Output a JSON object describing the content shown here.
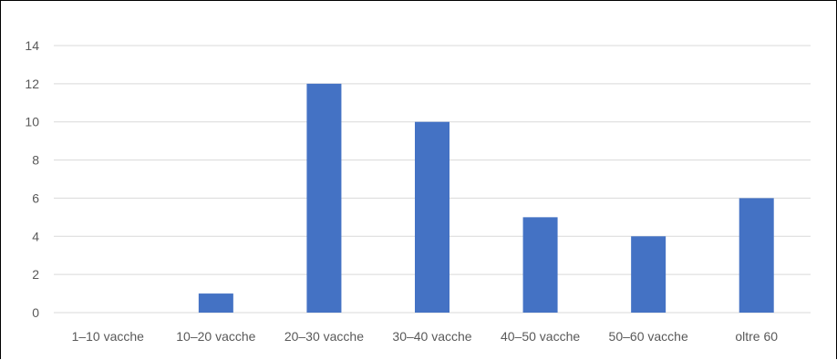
{
  "chart_data": {
    "type": "bar",
    "title": "",
    "xlabel": "",
    "ylabel": "",
    "categories": [
      "1–10 vacche",
      "10–20 vacche",
      "20–30 vacche",
      "30–40 vacche",
      "40–50 vacche",
      "50–60 vacche",
      "oltre 60"
    ],
    "values": [
      0,
      1,
      12,
      10,
      5,
      4,
      6
    ],
    "ylim": [
      0,
      14
    ],
    "yticks": [
      "0",
      "2",
      "4",
      "6",
      "8",
      "10",
      "12",
      "14"
    ],
    "grid": true,
    "legend": "none",
    "colors": {
      "bar": "#4472C4",
      "grid": "#D9D9D9",
      "tick_text": "#595959",
      "frame": "#000000"
    }
  }
}
